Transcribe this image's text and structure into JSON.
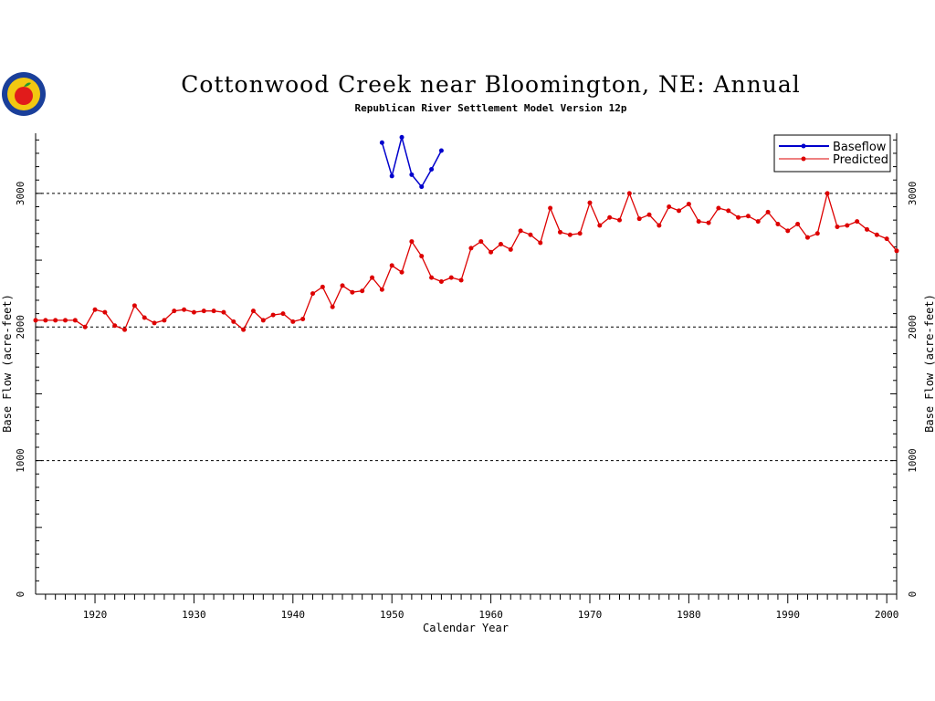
{
  "title": "Cottonwood Creek near Bloomington, NE: Annual",
  "subtitle": "Republican River Settlement Model Version 12p",
  "chart_data": {
    "type": "line",
    "xlabel": "Calendar Year",
    "ylabel": "Base Flow (acre-feet)",
    "xlim": [
      1914,
      2001
    ],
    "ylim": [
      0,
      3450
    ],
    "x_ticks": [
      1920,
      1930,
      1940,
      1950,
      1960,
      1970,
      1980,
      1990,
      2000
    ],
    "y_ticks": [
      0,
      1000,
      2000,
      3000
    ],
    "grid": "dashed horizontal lines at 1000, 2000, 3000",
    "legend_placement": "top-right",
    "series": [
      {
        "name": "Baseflow",
        "color": "#0000cc",
        "x": [
          1949,
          1950,
          1951,
          1952,
          1953,
          1954,
          1955
        ],
        "y": [
          3380,
          3130,
          3420,
          3140,
          3050,
          3180,
          3320
        ]
      },
      {
        "name": "Predicted",
        "color": "#dd0000",
        "x": [
          1914,
          1915,
          1916,
          1917,
          1918,
          1919,
          1920,
          1921,
          1922,
          1923,
          1924,
          1925,
          1926,
          1927,
          1928,
          1929,
          1930,
          1931,
          1932,
          1933,
          1934,
          1935,
          1936,
          1937,
          1938,
          1939,
          1940,
          1941,
          1942,
          1943,
          1944,
          1945,
          1946,
          1947,
          1948,
          1949,
          1950,
          1951,
          1952,
          1953,
          1954,
          1955,
          1956,
          1957,
          1958,
          1959,
          1960,
          1961,
          1962,
          1963,
          1964,
          1965,
          1966,
          1967,
          1968,
          1969,
          1970,
          1971,
          1972,
          1973,
          1974,
          1975,
          1976,
          1977,
          1978,
          1979,
          1980,
          1981,
          1982,
          1983,
          1984,
          1985,
          1986,
          1987,
          1988,
          1989,
          1990,
          1991,
          1992,
          1993,
          1994,
          1995,
          1996,
          1997,
          1998,
          1999,
          2000,
          2001
        ],
        "y": [
          2050,
          2050,
          2050,
          2050,
          2050,
          2000,
          2130,
          2110,
          2010,
          1980,
          2160,
          2070,
          2030,
          2050,
          2120,
          2130,
          2110,
          2120,
          2120,
          2110,
          2040,
          1980,
          2120,
          2050,
          2090,
          2100,
          2040,
          2060,
          2250,
          2300,
          2150,
          2310,
          2260,
          2270,
          2370,
          2280,
          2460,
          2410,
          2640,
          2530,
          2370,
          2340,
          2370,
          2350,
          2590,
          2640,
          2560,
          2620,
          2580,
          2720,
          2690,
          2630,
          2890,
          2710,
          2690,
          2700,
          2930,
          2760,
          2820,
          2800,
          3000,
          2810,
          2840,
          2760,
          2900,
          2870,
          2920,
          2790,
          2780,
          2890,
          2870,
          2820,
          2830,
          2790,
          2860,
          2770,
          2720,
          2770,
          2670,
          2700,
          3000,
          2750,
          2760,
          2790,
          2730,
          2690,
          2660,
          2570
        ]
      }
    ]
  }
}
